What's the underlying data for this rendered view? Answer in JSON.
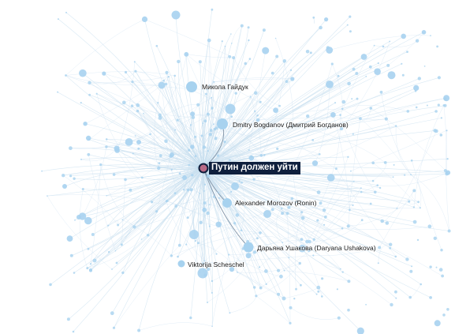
{
  "graph": {
    "focus_node": {
      "label": "Путин должен уйти",
      "fill": "#b86a86",
      "stroke": "#0e1f3d",
      "label_background": "#0e1f3d"
    },
    "colors": {
      "node": "#a7d2ef",
      "edge": "#c9dff0",
      "highlight_edge": "#6a7f95"
    },
    "labeled_nodes": [
      {
        "id": "mykola",
        "label": "Микола Гайдук"
      },
      {
        "id": "dmitry",
        "label": "Dmitry  Bogdanov (Дмитрий Богданов)"
      },
      {
        "id": "alexander",
        "label": "Alexander Morozov (Ronin)"
      },
      {
        "id": "daryana",
        "label": "Дарьяна Ушакова (Daryana  Ushakova)"
      },
      {
        "id": "viktorija",
        "label": "Viktorija Scheschel"
      }
    ]
  }
}
